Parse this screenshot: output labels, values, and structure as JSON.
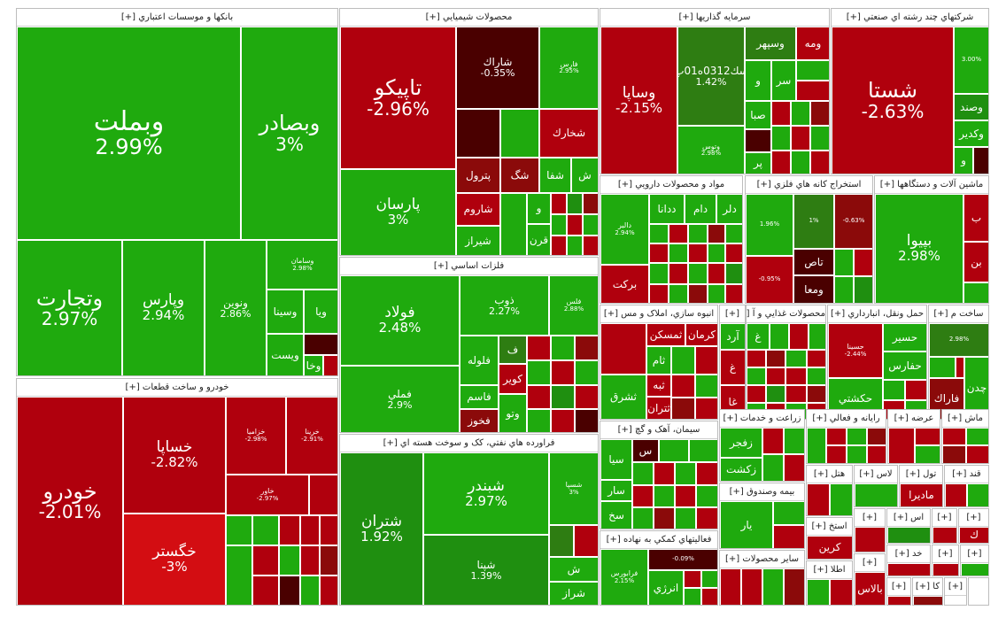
{
  "sectors": {
    "banks": {
      "title": "بانکها و موسسات اعتباري [+]"
    },
    "chem": {
      "title": "محصولات شيميايي [+]"
    },
    "invest": {
      "title": "سرمايه گذاريها [+]"
    },
    "multi": {
      "title": "شرکتهاي چند رشته اي صنعتي [+]"
    },
    "auto": {
      "title": "خودرو و ساخت قطعات [+]"
    },
    "metals": {
      "title": "فلزات اساسي [+]"
    },
    "oil": {
      "title": "فراورده هاي نفتي، کک و سوخت هسته اي [+]"
    },
    "pharma": {
      "title": "مواد و محصولات دارويي [+]"
    },
    "mining": {
      "title": "استخراج کانه هاي فلزي [+]"
    },
    "machinery": {
      "title": "ماشين آلات و دستگاهها [+]"
    },
    "mass": {
      "title": "انبوه سازي، املاک و مس [+]"
    },
    "small1": {
      "title": "[+]"
    },
    "food": {
      "title": "محصولات غذايي و آ [+]"
    },
    "transport": {
      "title": "حمل ونقل، انبارداري [+]"
    },
    "build": {
      "title": "ساخت م [+]"
    },
    "cement": {
      "title": "سيمان، آهک و گچ [+]"
    },
    "agri": {
      "title": "زراعت و خدمات [+]"
    },
    "computer": {
      "title": "رايانه و فعالي [+]"
    },
    "offer": {
      "title": "عرضه [+]"
    },
    "mach2": {
      "title": "ماش [+]"
    },
    "support": {
      "title": "فعاليتهاي کمکي به نهاده [+]"
    },
    "insurance": {
      "title": "بيمه وصندوق [+]"
    },
    "hotel": {
      "title": "هتل [+]"
    },
    "glass": {
      "title": "لاس [+]"
    },
    "tol": {
      "title": "تول [+]"
    },
    "qand": {
      "title": "قند [+]"
    },
    "other": {
      "title": "ساير محصولات [+]"
    },
    "p1": {
      "title": "[+]"
    },
    "p2": {
      "title": "اس [+]"
    },
    "p3": {
      "title": "[+]"
    },
    "p4": {
      "title": "[+]"
    },
    "p5": {
      "title": "خد [+]"
    },
    "p6": {
      "title": "[+]"
    },
    "p7": {
      "title": "[+]"
    },
    "p8": {
      "title": "[+]"
    },
    "p9": {
      "title": "کا [+]"
    },
    "p10": {
      "title": "[+]"
    }
  },
  "stocks": {
    "vbmelat": {
      "name": "وبملت",
      "pct": "2.99%"
    },
    "vbsader": {
      "name": "وبصادر",
      "pct": "3%"
    },
    "vtejarat": {
      "name": "وتجارت",
      "pct": "2.97%"
    },
    "vpars": {
      "name": "وپارس",
      "pct": "2.94%"
    },
    "vnovin": {
      "name": "ونوين",
      "pct": "2.86%"
    },
    "vsamagan": {
      "name": "وسامان",
      "pct": "2.98%"
    },
    "vsina": {
      "name": "وسينا",
      "pct": ""
    },
    "vya": {
      "name": "ويا",
      "pct": ""
    },
    "vpost": {
      "name": "ويست",
      "pct": ""
    },
    "vkha": {
      "name": "وخا",
      "pct": ""
    },
    "tapiko": {
      "name": "تاپيكو",
      "pct": "-2.96%"
    },
    "sharak": {
      "name": "شاراك",
      "pct": "-0.35%"
    },
    "fars": {
      "name": "فارس",
      "pct": "2.95%"
    },
    "shekhark": {
      "name": "شخارك",
      "pct": ""
    },
    "parsan": {
      "name": "پارسان",
      "pct": "3%"
    },
    "petrol": {
      "name": "پترول",
      "pct": ""
    },
    "sheg": {
      "name": "شگ",
      "pct": ""
    },
    "shefa": {
      "name": "شفا",
      "pct": ""
    },
    "shaa": {
      "name": "ش",
      "pct": ""
    },
    "sharum": {
      "name": "شاروم",
      "pct": ""
    },
    "shiraz": {
      "name": "شيراز",
      "pct": ""
    },
    "qarn": {
      "name": "قرن",
      "pct": ""
    },
    "vo": {
      "name": "و",
      "pct": ""
    },
    "vsapa": {
      "name": "وساپا",
      "pct": "-2.15%"
    },
    "sk0312": {
      "name": "سك0312ه01پ",
      "pct": "1.42%"
    },
    "vsepehr": {
      "name": "وسپهر",
      "pct": ""
    },
    "vome": {
      "name": "ومه",
      "pct": ""
    },
    "vtoos": {
      "name": "وتوس",
      "pct": "2.98%"
    },
    "vsar": {
      "name": "سر",
      "pct": ""
    },
    "vsaba": {
      "name": "صبا",
      "pct": ""
    },
    "vpar": {
      "name": "پر",
      "pct": ""
    },
    "shasta": {
      "name": "شستا",
      "pct": "-2.63%"
    },
    "vsand": {
      "name": "وصند",
      "pct": ""
    },
    "vkadir": {
      "name": "وكدير",
      "pct": ""
    },
    "vmulti": {
      "name": "و",
      "pct": ""
    },
    "khodro": {
      "name": "خودرو",
      "pct": "-2.01%"
    },
    "khsapa": {
      "name": "خساپا",
      "pct": "-2.82%"
    },
    "khgostar": {
      "name": "خگستر",
      "pct": "-3%"
    },
    "khzamia": {
      "name": "خزاميا",
      "pct": "-2.98%"
    },
    "khrina": {
      "name": "خرينا",
      "pct": "-2.91%"
    },
    "khtoos": {
      "name": "خاور",
      "pct": "-2.97%"
    },
    "foolad": {
      "name": "فولاد",
      "pct": "2.48%"
    },
    "fmeli": {
      "name": "فملي",
      "pct": "2.9%"
    },
    "fkhooz": {
      "name": "فخوز",
      "pct": ""
    },
    "zob": {
      "name": "ذوب",
      "pct": "2.27%"
    },
    "foolaj": {
      "name": "فلوله",
      "pct": ""
    },
    "fasam": {
      "name": "فاسم",
      "pct": ""
    },
    "fvato": {
      "name": "وتو",
      "pct": ""
    },
    "kavir": {
      "name": "كوير",
      "pct": ""
    },
    "shtran": {
      "name": "شتران",
      "pct": "1.92%"
    },
    "shbandar": {
      "name": "شبندر",
      "pct": "2.97%"
    },
    "shpna": {
      "name": "شپنا",
      "pct": "1.39%"
    },
    "shraz": {
      "name": "شراز",
      "pct": ""
    },
    "barkat": {
      "name": "بركت",
      "pct": ""
    },
    "dalber": {
      "name": "دالبر",
      "pct": "2.94%"
    },
    "ddana": {
      "name": "ددانا",
      "pct": ""
    },
    "ddam": {
      "name": "دام",
      "pct": ""
    },
    "dlar": {
      "name": "دلر",
      "pct": ""
    },
    "tas": {
      "name": "تاص",
      "pct": ""
    },
    "vmea": {
      "name": "ومعا",
      "pct": ""
    },
    "bipa": {
      "name": "بپيوا",
      "pct": "2.98%"
    },
    "tamskan": {
      "name": "ثمسكن",
      "pct": ""
    },
    "kerman": {
      "name": "كرمان",
      "pct": ""
    },
    "sakam": {
      "name": "ثام",
      "pct": ""
    },
    "tbeh": {
      "name": "ثبه",
      "pct": ""
    },
    "tshrq": {
      "name": "ثشرق",
      "pct": ""
    },
    "tehran": {
      "name": "ثتران",
      "pct": ""
    },
    "hsir": {
      "name": "حسير",
      "pct": ""
    },
    "hfars": {
      "name": "حفارس",
      "pct": ""
    },
    "hkeshti": {
      "name": "حكشتي",
      "pct": ""
    },
    "hseina": {
      "name": "حسينا",
      "pct": "-2.44%"
    },
    "farak": {
      "name": "فاراك",
      "pct": ""
    },
    "chad": {
      "name": "چدن",
      "pct": ""
    },
    "zfajr": {
      "name": "زفجر",
      "pct": ""
    },
    "zkesht": {
      "name": "زكشت",
      "pct": ""
    },
    "madira": {
      "name": "ماديرا",
      "pct": ""
    },
    "anerji": {
      "name": "انرژي",
      "pct": ""
    },
    "fraboors": {
      "name": "فرابورس",
      "pct": "2.15%"
    },
    "balas": {
      "name": "بالاس",
      "pct": ""
    },
    "karin": {
      "name": "كرين",
      "pct": ""
    },
    "sasa": {
      "name": "سا",
      "pct": ""
    }
  }
}
